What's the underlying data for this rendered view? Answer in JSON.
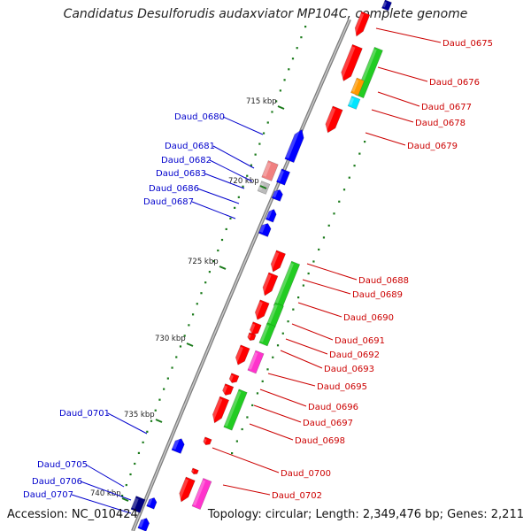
{
  "title": "Candidatus Desulforudis audaxviator MP104C, complete genome",
  "accession_label": "Accession: NC_010424",
  "summary_label": "Topology: circular; Length: 2,349,476 bp; Genes: 2,211",
  "colors": {
    "backbone": "#8a8a8a",
    "forward_gene": "#ff0000",
    "reverse_gene": "#0000ff",
    "rna_green": "#22cc22",
    "tick": "#1a7a1a",
    "label_left": "#0000cc",
    "label_right": "#cc0000"
  },
  "kbp_ticks": [
    {
      "label": "715 kbp"
    },
    {
      "label": "720 kbp"
    },
    {
      "label": "725 kbp"
    },
    {
      "label": "730 kbp"
    },
    {
      "label": "735 kbp"
    },
    {
      "label": "740 kbp"
    }
  ],
  "left_genes": [
    {
      "label": "Daud_0680"
    },
    {
      "label": "Daud_0681"
    },
    {
      "label": "Daud_0682"
    },
    {
      "label": "Daud_0683"
    },
    {
      "label": "Daud_0686"
    },
    {
      "label": "Daud_0687"
    },
    {
      "label": "Daud_0701"
    },
    {
      "label": "Daud_0705"
    },
    {
      "label": "Daud_0706"
    },
    {
      "label": "Daud_0707"
    }
  ],
  "right_genes": [
    {
      "label": "Daud_0675"
    },
    {
      "label": "Daud_0676"
    },
    {
      "label": "Daud_0677"
    },
    {
      "label": "Daud_0678"
    },
    {
      "label": "Daud_0679"
    },
    {
      "label": "Daud_0688"
    },
    {
      "label": "Daud_0689"
    },
    {
      "label": "Daud_0690"
    },
    {
      "label": "Daud_0691"
    },
    {
      "label": "Daud_0692"
    },
    {
      "label": "Daud_0693"
    },
    {
      "label": "Daud_0695"
    },
    {
      "label": "Daud_0696"
    },
    {
      "label": "Daud_0697"
    },
    {
      "label": "Daud_0698"
    },
    {
      "label": "Daud_0700"
    },
    {
      "label": "Daud_0702"
    }
  ]
}
